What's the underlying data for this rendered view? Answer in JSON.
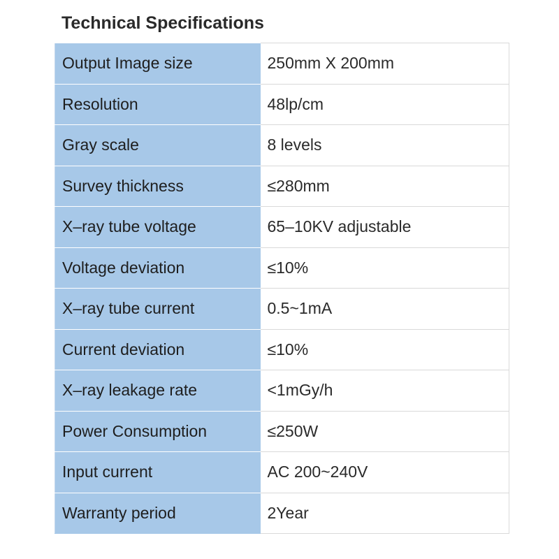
{
  "title": "Technical Specifications",
  "colors": {
    "label_background": "#a7c8e8",
    "value_background": "#ffffff",
    "border": "#d9d9d9"
  },
  "specs": [
    {
      "label": "Output Image size",
      "value": "250mm X 200mm"
    },
    {
      "label": "Resolution",
      "value": "48lp/cm"
    },
    {
      "label": "Gray scale",
      "value": "8 levels"
    },
    {
      "label": "Survey thickness",
      "value": "≤280mm"
    },
    {
      "label": "X–ray tube voltage",
      "value": "65–10KV adjustable"
    },
    {
      "label": "Voltage deviation",
      "value": "≤10%"
    },
    {
      "label": "X–ray tube current",
      "value": "0.5~1mA"
    },
    {
      "label": "Current deviation",
      "value": "≤10%"
    },
    {
      "label": "X–ray leakage rate",
      "value": "<1mGy/h"
    },
    {
      "label": "Power Consumption",
      "value": "≤250W"
    },
    {
      "label": "Input current",
      "value": "AC 200~240V"
    },
    {
      "label": "Warranty period",
      "value": "2Year"
    }
  ]
}
